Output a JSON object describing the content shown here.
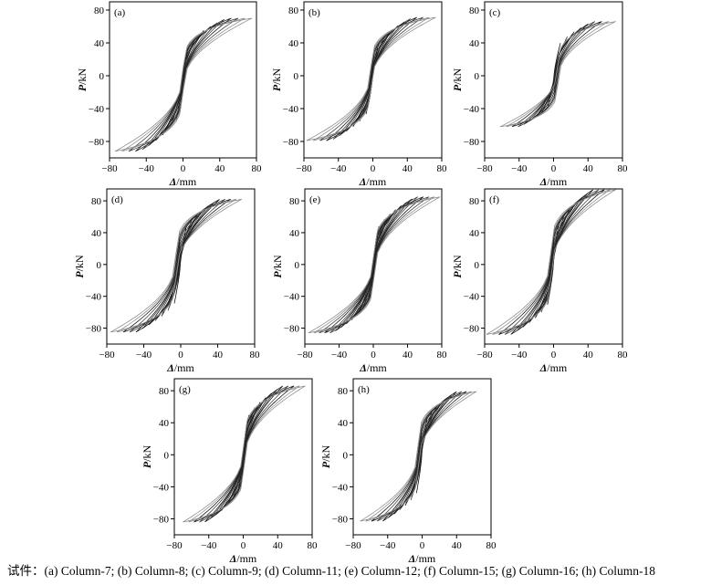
{
  "caption": "试件：(a) Column-7; (b) Column-8; (c) Column-9; (d) Column-11; (e) Column-12; (f) Column-15; (g) Column-16; (h) Column-18",
  "axis_labels": {
    "y_italic": "P",
    "y_unit": "/kN",
    "x_italic": "Δ",
    "x_unit": "/mm"
  },
  "chart_data": [
    {
      "type": "line",
      "panel_label": "(a)",
      "xlim": [
        -80,
        80
      ],
      "ylim": [
        -100,
        90
      ],
      "xticks": [
        -80,
        -40,
        0,
        40,
        80
      ],
      "yticks": [
        -80,
        -40,
        0,
        40,
        80
      ],
      "cycles": 10,
      "peak_pos": 70,
      "peak_neg": -92,
      "dmax_pos": 75,
      "dmax_neg": -74,
      "grid": false
    },
    {
      "type": "line",
      "panel_label": "(b)",
      "xlim": [
        -80,
        80
      ],
      "ylim": [
        -100,
        90
      ],
      "xticks": [
        -80,
        -40,
        0,
        40,
        80
      ],
      "yticks": [
        -80,
        -40,
        0,
        40,
        80
      ],
      "cycles": 10,
      "peak_pos": 71,
      "peak_neg": -79,
      "dmax_pos": 73,
      "dmax_neg": -77,
      "grid": false
    },
    {
      "type": "line",
      "panel_label": "(c)",
      "xlim": [
        -80,
        80
      ],
      "ylim": [
        -100,
        90
      ],
      "xticks": [
        -80,
        -40,
        0,
        40,
        80
      ],
      "yticks": [
        -80,
        -40,
        0,
        40,
        80
      ],
      "cycles": 9,
      "peak_pos": 66,
      "peak_neg": -62,
      "dmax_pos": 72,
      "dmax_neg": -62,
      "grid": false
    },
    {
      "type": "line",
      "panel_label": "(d)",
      "xlim": [
        -80,
        80
      ],
      "ylim": [
        -100,
        95
      ],
      "xticks": [
        -80,
        -40,
        0,
        40,
        80
      ],
      "yticks": [
        -80,
        -40,
        0,
        40,
        80
      ],
      "cycles": 11,
      "peak_pos": 82,
      "peak_neg": -85,
      "dmax_pos": 66,
      "dmax_neg": -76,
      "grid": false
    },
    {
      "type": "line",
      "panel_label": "(e)",
      "xlim": [
        -80,
        80
      ],
      "ylim": [
        -100,
        95
      ],
      "xticks": [
        -80,
        -40,
        0,
        40,
        80
      ],
      "yticks": [
        -80,
        -40,
        0,
        40,
        80
      ],
      "cycles": 12,
      "peak_pos": 85,
      "peak_neg": -86,
      "dmax_pos": 78,
      "dmax_neg": -76,
      "grid": false
    },
    {
      "type": "line",
      "panel_label": "(f)",
      "xlim": [
        -80,
        80
      ],
      "ylim": [
        -100,
        95
      ],
      "xticks": [
        -80,
        -40,
        0,
        40,
        80
      ],
      "yticks": [
        -80,
        -40,
        0,
        40,
        80
      ],
      "cycles": 11,
      "peak_pos": 94,
      "peak_neg": -88,
      "dmax_pos": 72,
      "dmax_neg": -78,
      "grid": false
    },
    {
      "type": "line",
      "panel_label": "(g)",
      "xlim": [
        -80,
        80
      ],
      "ylim": [
        -100,
        95
      ],
      "xticks": [
        -80,
        -40,
        0,
        40,
        80
      ],
      "yticks": [
        -80,
        -40,
        0,
        40,
        80
      ],
      "cycles": 11,
      "peak_pos": 86,
      "peak_neg": -84,
      "dmax_pos": 72,
      "dmax_neg": -70,
      "grid": false
    },
    {
      "type": "line",
      "panel_label": "(h)",
      "xlim": [
        -80,
        80
      ],
      "ylim": [
        -100,
        95
      ],
      "xticks": [
        -80,
        -40,
        0,
        40,
        80
      ],
      "yticks": [
        -80,
        -40,
        0,
        40,
        80
      ],
      "cycles": 11,
      "peak_pos": 79,
      "peak_neg": -83,
      "dmax_pos": 63,
      "dmax_neg": -72,
      "grid": false
    }
  ]
}
